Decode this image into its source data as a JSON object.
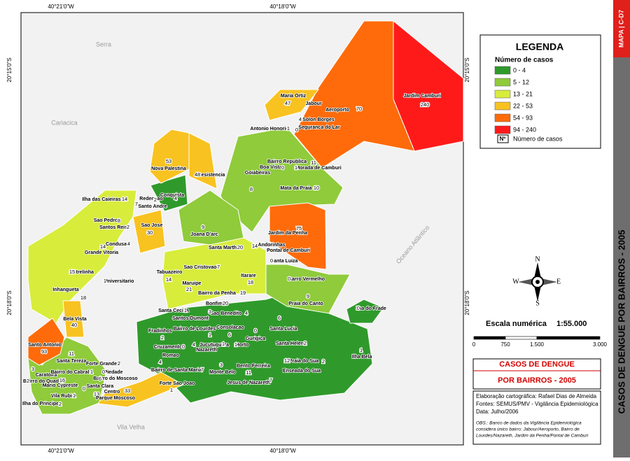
{
  "map": {
    "coords": {
      "top": [
        "40°21'0\"W",
        "40°18'0\"W"
      ],
      "bottom": [
        "40°21'0\"W",
        "40°18'0\"W"
      ],
      "left": [
        "20°15'0\"S",
        "20°18'0\"S"
      ],
      "right": [
        "20°15'0\"S",
        "20°18'0\"S"
      ]
    },
    "regions": [
      "Serra",
      "Cariacica",
      "Vila Velha",
      "Oceano Atlântico"
    ],
    "neighborhoods": [
      {
        "name": "Maria Ortiz",
        "cases": 47
      },
      {
        "name": "Jabour",
        "cases": null
      },
      {
        "name": "Aeroporto",
        "cases": 70
      },
      {
        "name": "Jardim Camburi",
        "cases": 240
      },
      {
        "name": "Solon Borges",
        "cases": 4
      },
      {
        "name": "Seguranca do Lar",
        "cases": 0
      },
      {
        "name": "Antonio Honorio",
        "cases": 1
      },
      {
        "name": "Bairro Republica",
        "cases": 11
      },
      {
        "name": "Boa Vista",
        "cases": 0
      },
      {
        "name": "Morada de Camburi",
        "cases": 1
      },
      {
        "name": "Goiabeiras",
        "cases": 8
      },
      {
        "name": "Mata da Praia",
        "cases": 10
      },
      {
        "name": "Jardim da Penha",
        "cases": 75
      },
      {
        "name": "Andorinhas",
        "cases": 14
      },
      {
        "name": "Pontal de Camburi",
        "cases": null
      },
      {
        "name": "Santa Luiza",
        "cases": 0
      },
      {
        "name": "Barro Vermelho",
        "cases": 0
      },
      {
        "name": "Praia do Canto",
        "cases": 9
      },
      {
        "name": "Ilha do Frade",
        "cases": 0
      },
      {
        "name": "Santa Lucia",
        "cases": 6
      },
      {
        "name": "Santa Helena",
        "cases": 2
      },
      {
        "name": "Praia do Sua",
        "cases": 12
      },
      {
        "name": "Enseada do Sua",
        "cases": 2
      },
      {
        "name": "Ilha Bela",
        "cases": 1
      },
      {
        "name": "Bento Ferreira",
        "cases": 11
      },
      {
        "name": "Jesus de Nazareth",
        "cases": 7
      },
      {
        "name": "Gurigica",
        "cases": 0
      },
      {
        "name": "Horto",
        "cases": 1
      },
      {
        "name": "Consolacao",
        "cases": 6
      },
      {
        "name": "Jucutuquara",
        "cases": 4
      },
      {
        "name": "Nazareth",
        "cases": 1
      },
      {
        "name": "Monte Belo",
        "cases": 3
      },
      {
        "name": "Bairro de Lourdes",
        "cases": 1
      },
      {
        "name": "Sao Benedito",
        "cases": 4
      },
      {
        "name": "Bonfim",
        "cases": 20
      },
      {
        "name": "Bairro da Penha",
        "cases": 19
      },
      {
        "name": "Santa Cecilia",
        "cases": 1
      },
      {
        "name": "Santos Dumont",
        "cases": 3
      },
      {
        "name": "Fradinhos",
        "cases": 2
      },
      {
        "name": "Cruzamento",
        "cases": 0
      },
      {
        "name": "Romao",
        "cases": 4
      },
      {
        "name": "Bairro de Santa Maria",
        "cases": 7
      },
      {
        "name": "Forte Sao Joao",
        "cases": 1
      },
      {
        "name": "Maruipe",
        "cases": 21
      },
      {
        "name": "Tabuazeiro",
        "cases": 14
      },
      {
        "name": "Sao Cristovao",
        "cases": 7
      },
      {
        "name": "Itarare",
        "cases": 18
      },
      {
        "name": "Santa Martha",
        "cases": 20
      },
      {
        "name": "Joana D'arc",
        "cases": 9
      },
      {
        "name": "Resistencia",
        "cases": 48
      },
      {
        "name": "Nova Palestina",
        "cases": 53
      },
      {
        "name": "Ilha das Caieiras",
        "cases": 14
      },
      {
        "name": "Redencao",
        "cases": 7
      },
      {
        "name": "Conquista",
        "cases": 4
      },
      {
        "name": "Santo Andre",
        "cases": 2
      },
      {
        "name": "Sao Pedro",
        "cases": 8
      },
      {
        "name": "Santos Reis",
        "cases": 2
      },
      {
        "name": "Sao Jose",
        "cases": 30
      },
      {
        "name": "Condusa",
        "cases": 4
      },
      {
        "name": "Grande Vitoria",
        "cases": 14
      },
      {
        "name": "Estrelinha",
        "cases": 15
      },
      {
        "name": "Universitario",
        "cases": 1
      },
      {
        "name": "Inhangueta",
        "cases": 18
      },
      {
        "name": "Bela Vista",
        "cases": 40
      },
      {
        "name": "Santo Antonio",
        "cases": 93
      },
      {
        "name": "Santa Tereza",
        "cases": 11
      },
      {
        "name": "Caratoira",
        "cases": 3
      },
      {
        "name": "Bairro do Quadro",
        "cases": 2
      },
      {
        "name": "Bairro do Cabral",
        "cases": 1
      },
      {
        "name": "Forte Grande",
        "cases": 2
      },
      {
        "name": "Piedade",
        "cases": 0
      },
      {
        "name": "Bairro do Moscoso",
        "cases": 6
      },
      {
        "name": "Mario Cypreste",
        "cases": 16
      },
      {
        "name": "Vila Rubim",
        "cases": 1
      },
      {
        "name": "Santa Clara",
        "cases": 0
      },
      {
        "name": "Centro",
        "cases": 13
      },
      {
        "name": "Parque Moscoso",
        "cases": 33
      },
      {
        "name": "Ilha do Principe",
        "cases": 2
      }
    ]
  },
  "legend": {
    "title": "LEGENDA",
    "subtitle": "Número de casos",
    "classes": [
      {
        "label": "0 - 4",
        "color": "#2f9a2b"
      },
      {
        "label": "5 - 12",
        "color": "#8fcb3b"
      },
      {
        "label": "13 - 21",
        "color": "#d8ec3c"
      },
      {
        "label": "22 - 53",
        "color": "#f8c220"
      },
      {
        "label": "54 - 93",
        "color": "#ff6b0a"
      },
      {
        "label": "94 - 240",
        "color": "#ff1a1a"
      }
    ],
    "symbol": "Nº",
    "symbol_label": "Número de casos"
  },
  "compass": {
    "n": "N",
    "s": "S",
    "e": "E",
    "w": "W"
  },
  "scale": {
    "label": "Escala numérica",
    "value": "1:55.000",
    "ticks": [
      "0",
      "750",
      "1.500",
      "3.000"
    ]
  },
  "title": [
    "CASOS DE DENGUE",
    "POR BAIRROS - 2005"
  ],
  "credits": [
    "Elaboração cartográfica: Rafael Dias de Almeida",
    "Fontes: SEMUS/PMV - Vigilância Epidemiológica",
    "Data: Julho/2006"
  ],
  "obs": [
    "OBS.: Banco de dados da Vigilância Epidemiológica",
    "considera único bairro: Jabour/Aeroporto, Bairro de",
    "Lourdes/Nazareth, Jardim da Penha/Pontal de Camburi"
  ],
  "strip": {
    "code": "MAPA | C-D7",
    "title": "CASOS DE DENGUE POR BAIRROS - 2005"
  }
}
